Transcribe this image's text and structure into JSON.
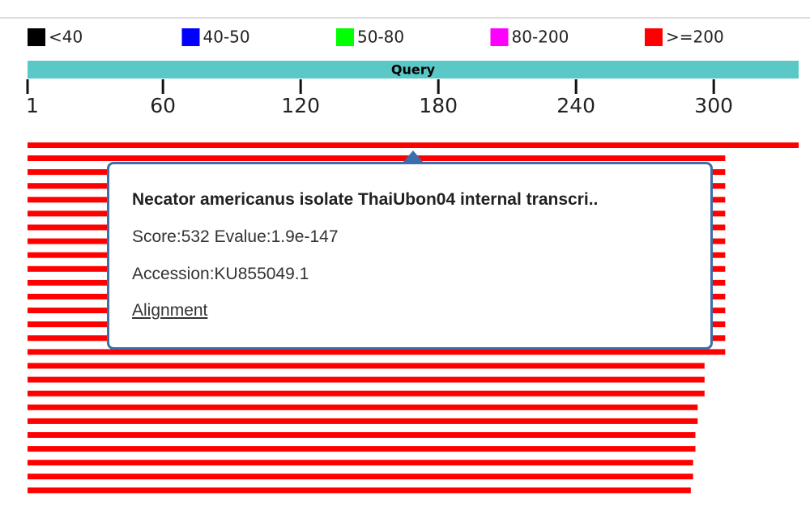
{
  "legend": [
    {
      "label": "<40",
      "color": "#000000"
    },
    {
      "label": "40-50",
      "color": "#0000ff"
    },
    {
      "label": "50-80",
      "color": "#00ff00"
    },
    {
      "label": "80-200",
      "color": "#ff00ff"
    },
    {
      "label": ">=200",
      "color": "#ff0000"
    }
  ],
  "query": {
    "label": "Query",
    "color": "#5bc8c8"
  },
  "axis": {
    "lim": [
      1,
      337
    ],
    "ticks": [
      1,
      60,
      120,
      180,
      240,
      300
    ]
  },
  "hit_color": "#ff0000",
  "hits": [
    [
      1,
      337
    ],
    [
      1,
      305
    ],
    [
      1,
      305
    ],
    [
      1,
      305
    ],
    [
      1,
      305
    ],
    [
      1,
      305
    ],
    [
      1,
      305
    ],
    [
      1,
      305
    ],
    [
      1,
      305
    ],
    [
      1,
      305
    ],
    [
      1,
      305
    ],
    [
      1,
      305
    ],
    [
      1,
      305
    ],
    [
      1,
      305
    ],
    [
      1,
      305
    ],
    [
      1,
      305
    ],
    [
      1,
      296
    ],
    [
      1,
      296
    ],
    [
      1,
      296
    ],
    [
      1,
      293
    ],
    [
      1,
      293
    ],
    [
      1,
      292
    ],
    [
      1,
      292
    ],
    [
      1,
      291
    ],
    [
      1,
      291
    ],
    [
      1,
      290
    ]
  ],
  "tooltip": {
    "title": "Necator americanus isolate ThaiUbon04 internal transcri..",
    "score": "Score:532 Evalue:1.9e-147",
    "accession": "Accession:KU855049.1",
    "link": "Alignment"
  }
}
